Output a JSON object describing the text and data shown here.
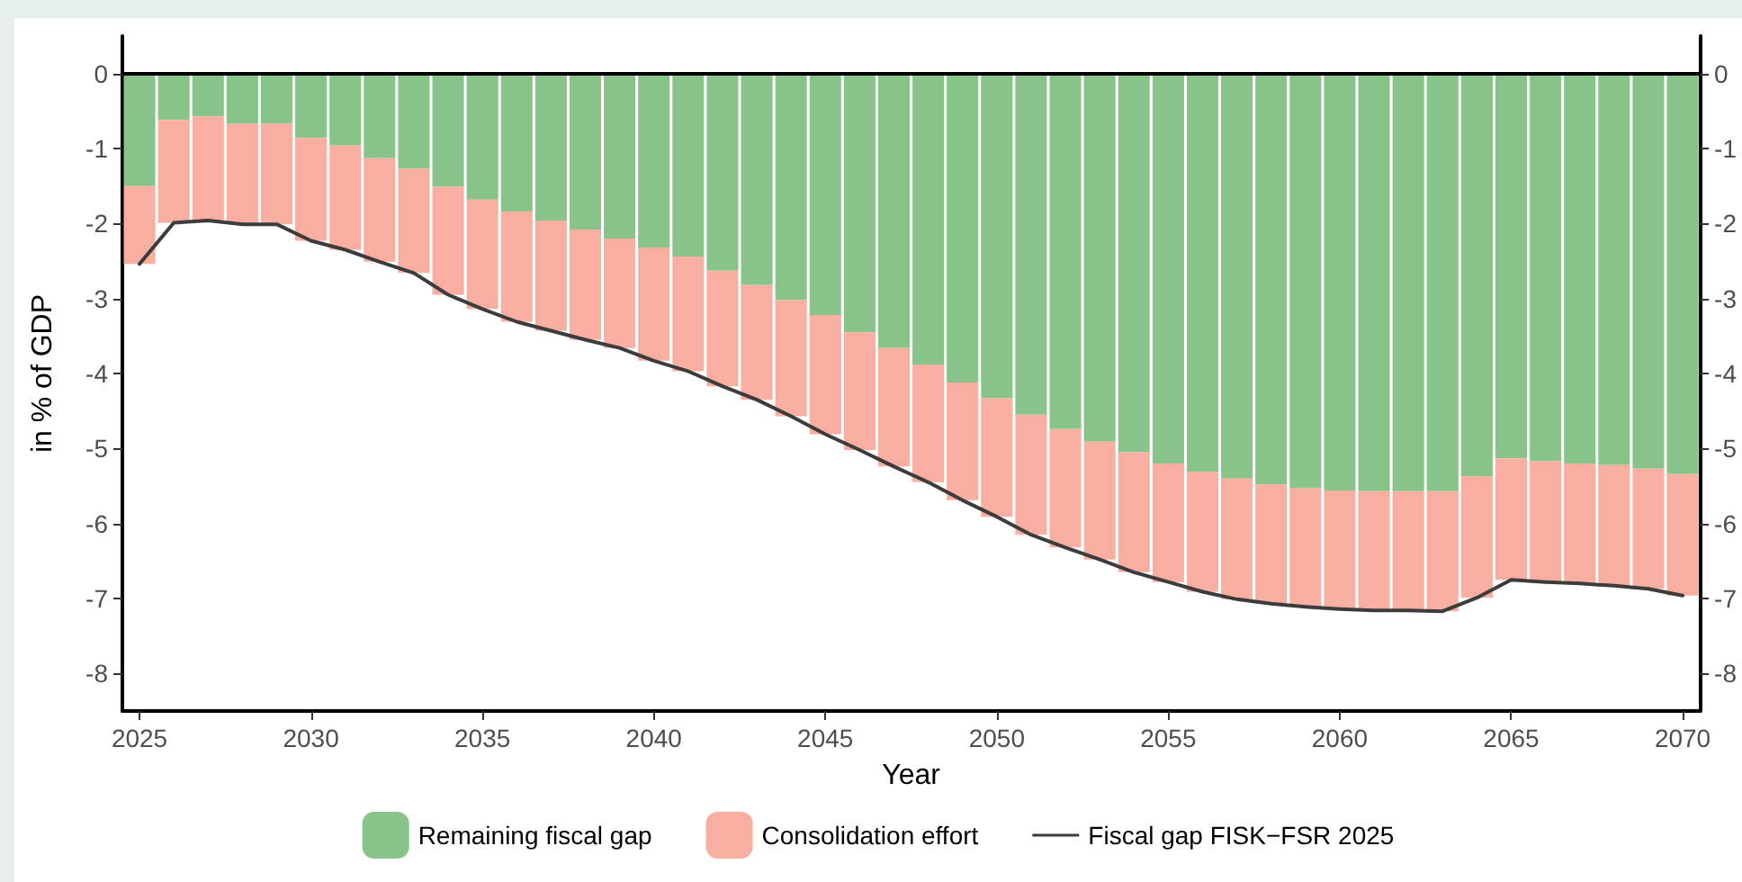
{
  "chart_data": {
    "type": "bar",
    "stacked": true,
    "xlabel": "Year",
    "ylabel": "in % of GDP",
    "x": [
      2025,
      2026,
      2027,
      2028,
      2029,
      2030,
      2031,
      2032,
      2033,
      2034,
      2035,
      2036,
      2037,
      2038,
      2039,
      2040,
      2041,
      2042,
      2043,
      2044,
      2045,
      2046,
      2047,
      2048,
      2049,
      2050,
      2051,
      2052,
      2053,
      2054,
      2055,
      2056,
      2057,
      2058,
      2059,
      2060,
      2061,
      2062,
      2063,
      2064,
      2065,
      2066,
      2067,
      2068,
      2069,
      2070
    ],
    "series": [
      {
        "name": "Remaining fiscal gap",
        "color": "#88c38a",
        "values": [
          -1.5,
          -0.62,
          -0.57,
          -0.67,
          -0.67,
          -0.86,
          -0.96,
          -1.13,
          -1.27,
          -1.51,
          -1.68,
          -1.84,
          -1.96,
          -2.08,
          -2.2,
          -2.32,
          -2.44,
          -2.63,
          -2.82,
          -3.02,
          -3.22,
          -3.45,
          -3.66,
          -3.88,
          -4.12,
          -4.33,
          -4.55,
          -4.74,
          -4.91,
          -5.05,
          -5.2,
          -5.31,
          -5.4,
          -5.48,
          -5.53,
          -5.56,
          -5.57,
          -5.57,
          -5.57,
          -5.37,
          -5.13,
          -5.17,
          -5.2,
          -5.22,
          -5.27,
          -5.34
        ]
      },
      {
        "name": "Consolidation effort",
        "color": "#f8aea0",
        "values": [
          -1.04,
          -1.37,
          -1.39,
          -1.34,
          -1.34,
          -1.37,
          -1.39,
          -1.38,
          -1.39,
          -1.44,
          -1.46,
          -1.47,
          -1.47,
          -1.47,
          -1.46,
          -1.51,
          -1.53,
          -1.54,
          -1.53,
          -1.55,
          -1.59,
          -1.57,
          -1.58,
          -1.57,
          -1.57,
          -1.58,
          -1.6,
          -1.58,
          -1.57,
          -1.6,
          -1.58,
          -1.6,
          -1.61,
          -1.59,
          -1.58,
          -1.58,
          -1.59,
          -1.59,
          -1.6,
          -1.62,
          -1.62,
          -1.61,
          -1.6,
          -1.61,
          -1.6,
          -1.62
        ]
      },
      {
        "name": "Fiscal gap FISK−FSR 2025",
        "type": "line",
        "color": "#3c3c3c",
        "values": [
          -2.54,
          -1.99,
          -1.96,
          -2.01,
          -2.01,
          -2.23,
          -2.35,
          -2.51,
          -2.66,
          -2.95,
          -3.14,
          -3.31,
          -3.43,
          -3.55,
          -3.66,
          -3.83,
          -3.97,
          -4.17,
          -4.35,
          -4.57,
          -4.81,
          -5.02,
          -5.24,
          -5.45,
          -5.69,
          -5.91,
          -6.15,
          -6.32,
          -6.48,
          -6.65,
          -6.78,
          -6.91,
          -7.01,
          -7.07,
          -7.11,
          -7.14,
          -7.16,
          -7.16,
          -7.17,
          -6.99,
          -6.75,
          -6.78,
          -6.8,
          -6.83,
          -6.87,
          -6.96
        ]
      }
    ],
    "xlim": [
      2024.5,
      2070.5
    ],
    "xticks": [
      2025,
      2030,
      2035,
      2040,
      2045,
      2050,
      2055,
      2060,
      2065,
      2070
    ],
    "ylim": [
      -8.5,
      0.5
    ],
    "yticks": [
      -8,
      -7,
      -6,
      -5,
      -4,
      -3,
      -2,
      -1,
      0
    ],
    "y2lim": [
      -8.5,
      0.5
    ],
    "y2ticks": [
      -8,
      -7,
      -6,
      -5,
      -4,
      -3,
      -2,
      -1,
      0
    ],
    "ref_lines": [
      {
        "axis": "y",
        "value": 0,
        "color": "#000000"
      }
    ],
    "grid": false,
    "legend": "bottom",
    "marker": "none",
    "line_style": "solid"
  }
}
